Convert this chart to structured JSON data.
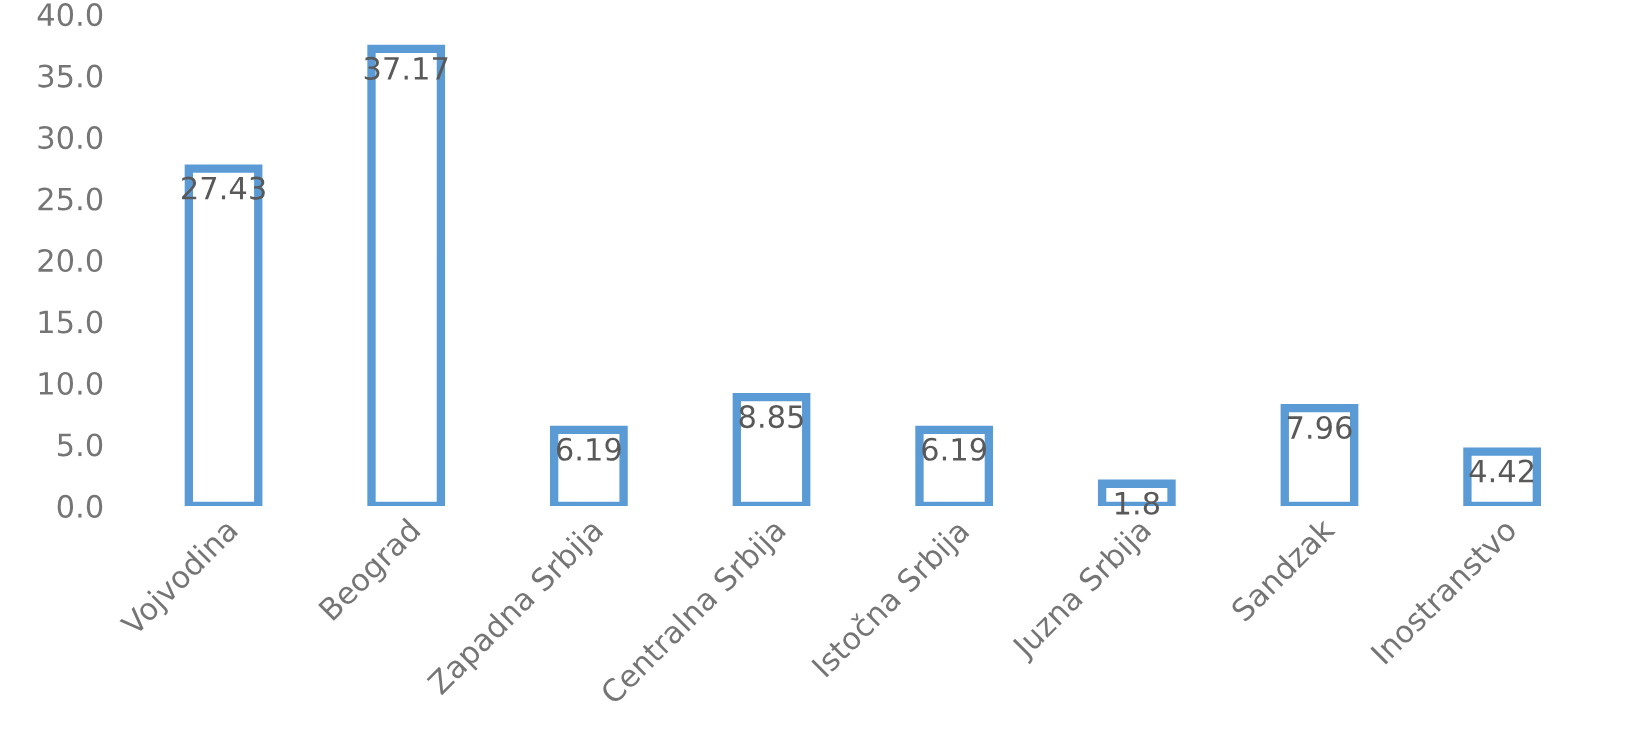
{
  "chart_data": {
    "type": "bar",
    "categories": [
      "Vojvodina",
      "Beograd",
      "Zapadna Srbija",
      "Centralna Srbija",
      "Istočna Srbija",
      "Juzna Srbija",
      "Sandzak",
      "Inostranstvo"
    ],
    "values": [
      27.43,
      37.17,
      6.19,
      8.85,
      6.19,
      1.8,
      7.96,
      4.42
    ],
    "color": "#5b9bd5",
    "ylim": [
      0,
      40
    ],
    "yticks": [
      {
        "value": 0,
        "label": "0.0"
      },
      {
        "value": 5,
        "label": "5.0"
      },
      {
        "value": 10,
        "label": "10.0"
      },
      {
        "value": 15,
        "label": "15.0"
      },
      {
        "value": 20,
        "label": "20.0"
      },
      {
        "value": 25,
        "label": "25.0"
      },
      {
        "value": 30,
        "label": "30.0"
      },
      {
        "value": 35,
        "label": "35.0"
      },
      {
        "value": 40,
        "label": "40.0"
      }
    ],
    "data_labels": true,
    "grid": false
  }
}
